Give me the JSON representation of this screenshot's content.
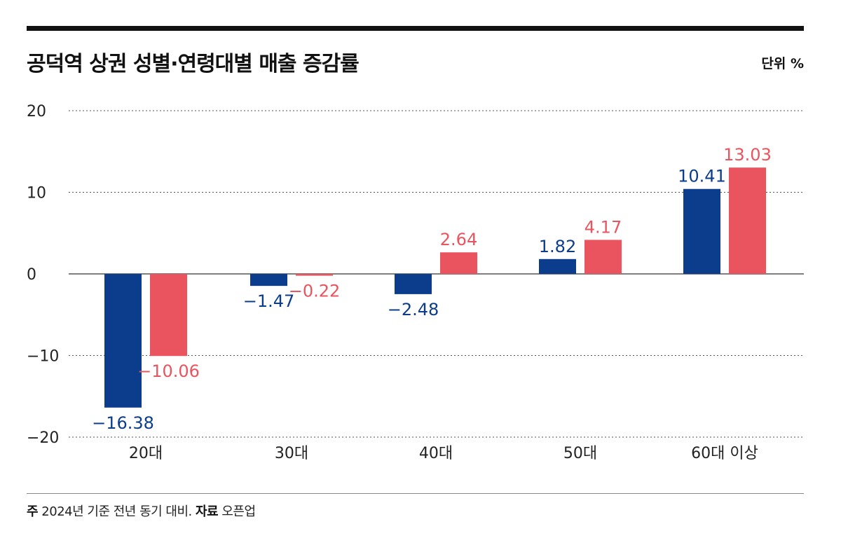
{
  "header": {
    "title": "공덕역 상권 성별·연령대별 매출 증감률",
    "unit": "단위 %"
  },
  "footer": {
    "note_label": "주",
    "note_text": "2024년 기준 전년 동기 대비.",
    "source_label": "자료",
    "source_text": "오픈업"
  },
  "chart_data": {
    "type": "bar",
    "title": "공덕역 상권 성별·연령대별 매출 증감률",
    "categories": [
      "20대",
      "30대",
      "40대",
      "50대",
      "60대 이상"
    ],
    "series": [
      {
        "values": [
          -16.38,
          -1.47,
          -2.48,
          1.82,
          10.41
        ],
        "color": "#0b3d8c"
      },
      {
        "values": [
          -10.06,
          -0.22,
          2.64,
          4.17,
          13.03
        ],
        "color": "#e9545e"
      }
    ],
    "value_labels": [
      [
        "−16.38",
        "−1.47",
        "−2.48",
        "1.82",
        "10.41"
      ],
      [
        "−10.06",
        "−0.22",
        "2.64",
        "4.17",
        "13.03"
      ]
    ],
    "ylim": [
      -20,
      20
    ],
    "yticks": [
      20,
      10,
      0,
      -10,
      -20
    ],
    "ytick_labels": [
      "20",
      "10",
      "0",
      "−10",
      "−20"
    ],
    "xlabel": "",
    "ylabel": "",
    "grid": "horizontal dotted",
    "legend": "none"
  }
}
